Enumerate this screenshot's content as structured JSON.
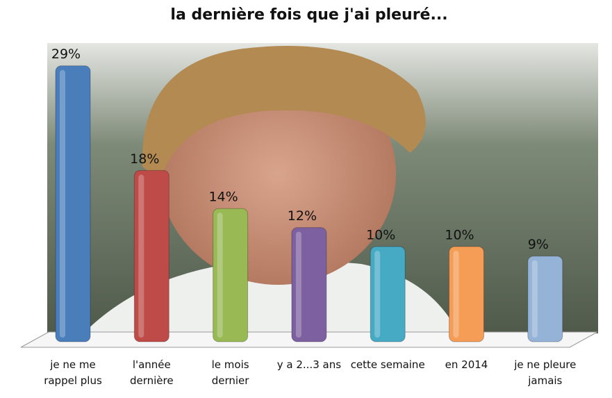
{
  "chart_data": {
    "type": "bar",
    "title": "la dernière fois que j'ai pleuré...",
    "categories": [
      "je ne me rappel plus",
      "l'année dernière",
      "le mois dernier",
      "y a 2...3 ans",
      "cette semaine",
      "en 2014",
      "je ne pleure jamais"
    ],
    "values": [
      29,
      18,
      14,
      12,
      10,
      10,
      9
    ],
    "value_labels": [
      "29%",
      "18%",
      "14%",
      "12%",
      "10%",
      "10%",
      "9%"
    ],
    "colors": [
      "#4a7ebb",
      "#be4b48",
      "#98b954",
      "#7d60a0",
      "#46aac5",
      "#f59d56",
      "#95b3d7"
    ]
  }
}
